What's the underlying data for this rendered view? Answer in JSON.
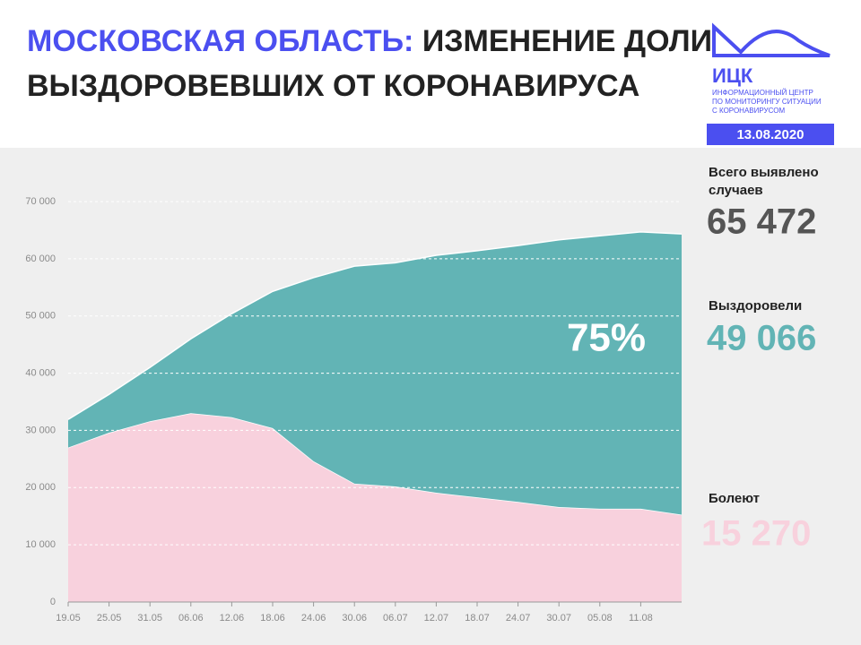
{
  "chart_data": {
    "type": "stacked-area",
    "title_highlight": "МОСКОВСКАЯ ОБЛАСТЬ:",
    "title_line1": "ИЗМЕНЕНИЕ ДОЛИ",
    "title_line2": "ВЫЗДОРОВЕВШИХ ОТ КОРОНАВИРУСА",
    "annotation": "75%",
    "categories": [
      "19.05",
      "25.05",
      "31.05",
      "06.06",
      "12.06",
      "18.06",
      "24.06",
      "30.06",
      "06.07",
      "12.07",
      "18.07",
      "24.07",
      "30.07",
      "05.08",
      "11.08",
      null
    ],
    "series": [
      {
        "name": "Болеют",
        "color": "#f8d1dd",
        "values": [
          27000,
          29600,
          31600,
          33000,
          32300,
          30400,
          24600,
          20700,
          20200,
          19100,
          18300,
          17500,
          16600,
          16300,
          16300,
          15270
        ]
      },
      {
        "name": "Выздоровели",
        "color": "#62b4b5",
        "values": [
          4900,
          6700,
          9400,
          13000,
          18100,
          23900,
          32100,
          38000,
          39100,
          41500,
          43100,
          44800,
          46700,
          47700,
          48400,
          49066
        ]
      }
    ],
    "ylim": [
      0,
      70000
    ],
    "yticks": [
      0,
      {
        "value": 10000,
        "label": "10 000"
      },
      {
        "value": 20000,
        "label": "20 000"
      },
      {
        "value": 30000,
        "label": "30 000"
      },
      {
        "value": 40000,
        "label": "40 000"
      },
      {
        "value": 50000,
        "label": "50 000"
      },
      {
        "value": 60000,
        "label": "60 000"
      },
      {
        "value": 70000,
        "label": "70 000"
      }
    ],
    "grid": true
  },
  "summary": {
    "total_label": "Всего выявлено случаев",
    "total_value": "65 472",
    "recovered_label": "Выздоровели",
    "recovered_value": "49 066",
    "sick_label": "Болеют",
    "sick_value": "15 270"
  },
  "logo": {
    "name": "ИЦК",
    "line1": "ИНФОРМАЦИОННЫЙ ЦЕНТР",
    "line2": "ПО МОНИТОРИНГУ СИТУАЦИИ",
    "line3": "С КОРОНАВИРУСОМ",
    "date": "13.08.2020"
  }
}
